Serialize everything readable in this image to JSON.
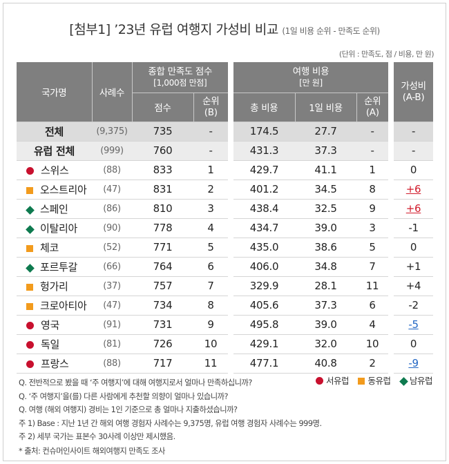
{
  "title": {
    "main": "[첨부1] ’23년 유럽 여행지  가성비 비교",
    "sub": "(1일 비용 순위 - 만족도 순위)"
  },
  "unit_note": "(단위 : 만족도, 점 / 비용, 만 원)",
  "header": {
    "country": "국가명",
    "cases": "사례수",
    "satisfaction_group": "종합 만족도 점수",
    "satisfaction_group_sub": "[1,000점 만점]",
    "score": "점수",
    "rank_b": "순위",
    "rank_b_sub": "(B)",
    "cost_group": "여행 비용",
    "cost_group_sub": "[만 원]",
    "total_cost": "총 비용",
    "daily_cost": "1일 비용",
    "rank_a": "순위",
    "rank_a_sub": "(A)",
    "value": "가성비",
    "value_sub": "(A-B)"
  },
  "rows": [
    {
      "name": "전체",
      "cases": "(9,375)",
      "score": "735",
      "rank_b": "-",
      "total": "174.5",
      "daily": "27.7",
      "rank_a": "-",
      "value": "-",
      "marker": "none"
    },
    {
      "name": "유럽 전체",
      "cases": "(999)",
      "score": "760",
      "rank_b": "-",
      "total": "431.3",
      "daily": "37.3",
      "rank_a": "-",
      "value": "-",
      "marker": "none"
    },
    {
      "name": "스위스",
      "cases": "(88)",
      "score": "833",
      "rank_b": "1",
      "total": "429.7",
      "daily": "41.1",
      "rank_a": "1",
      "value": "0",
      "marker": "west"
    },
    {
      "name": "오스트리아",
      "cases": "(47)",
      "score": "831",
      "rank_b": "2",
      "total": "401.2",
      "daily": "34.5",
      "rank_a": "8",
      "value": "+6",
      "marker": "east"
    },
    {
      "name": "스페인",
      "cases": "(86)",
      "score": "810",
      "rank_b": "3",
      "total": "438.4",
      "daily": "32.5",
      "rank_a": "9",
      "value": "+6",
      "marker": "south"
    },
    {
      "name": "이탈리아",
      "cases": "(90)",
      "score": "778",
      "rank_b": "4",
      "total": "434.7",
      "daily": "39.0",
      "rank_a": "3",
      "value": "-1",
      "marker": "south"
    },
    {
      "name": "체코",
      "cases": "(52)",
      "score": "771",
      "rank_b": "5",
      "total": "435.0",
      "daily": "38.6",
      "rank_a": "5",
      "value": "0",
      "marker": "east"
    },
    {
      "name": "포르투갈",
      "cases": "(66)",
      "score": "764",
      "rank_b": "6",
      "total": "406.0",
      "daily": "34.8",
      "rank_a": "7",
      "value": "+1",
      "marker": "south"
    },
    {
      "name": "헝가리",
      "cases": "(37)",
      "score": "757",
      "rank_b": "7",
      "total": "329.9",
      "daily": "28.1",
      "rank_a": "11",
      "value": "+4",
      "marker": "east"
    },
    {
      "name": "크로아티아",
      "cases": "(47)",
      "score": "734",
      "rank_b": "8",
      "total": "405.6",
      "daily": "37.3",
      "rank_a": "6",
      "value": "-2",
      "marker": "east"
    },
    {
      "name": "영국",
      "cases": "(91)",
      "score": "731",
      "rank_b": "9",
      "total": "495.8",
      "daily": "39.0",
      "rank_a": "4",
      "value": "-5",
      "marker": "west"
    },
    {
      "name": "독일",
      "cases": "(81)",
      "score": "726",
      "rank_b": "10",
      "total": "429.1",
      "daily": "32.0",
      "rank_a": "10",
      "value": "0",
      "marker": "west"
    },
    {
      "name": "프랑스",
      "cases": "(88)",
      "score": "717",
      "rank_b": "11",
      "total": "477.1",
      "daily": "40.8",
      "rank_a": "2",
      "value": "-9",
      "marker": "west"
    }
  ],
  "value_highlight": {
    "positive_color": "#d11a2a",
    "negative_color": "#2166c4",
    "highlight_positive": [
      "+6"
    ],
    "highlight_negative": [
      "-5",
      "-9"
    ]
  },
  "legend": {
    "west": "서유럽",
    "east": "동유럽",
    "south": "남유럽",
    "west_color": "#c8102e",
    "east_color": "#f29b1d",
    "south_color": "#0e7a4f"
  },
  "notes": [
    "Q. 전반적으로 봤을 때 ‘주 여행지’에 대해 여행지로서 얼마나 만족하십니까?",
    "Q. ‘주 여행지’을(를) 다른 사람에게 추천할 의향이 얼마나 있습니까?",
    "Q. 여행 (해외 여행지) 경비는 1인 기준으로 총 얼마나 지출하셨습니까?",
    "주 1) Base : 지난 1년 간 해외 여행 경험자 사례수는 9,375명, 유럽 여행 경험자 사례수는 999명.",
    "주 2) 세부 국가는 표본수 30사례 이상만 제시했음."
  ],
  "source": "* 출처: 컨슈머인사이트 해외여행지 만족도 조사",
  "colors": {
    "header_bg": "#7f7f7f",
    "total_row_bg": "#dcdcdc",
    "europe_row_bg": "#ececec"
  }
}
